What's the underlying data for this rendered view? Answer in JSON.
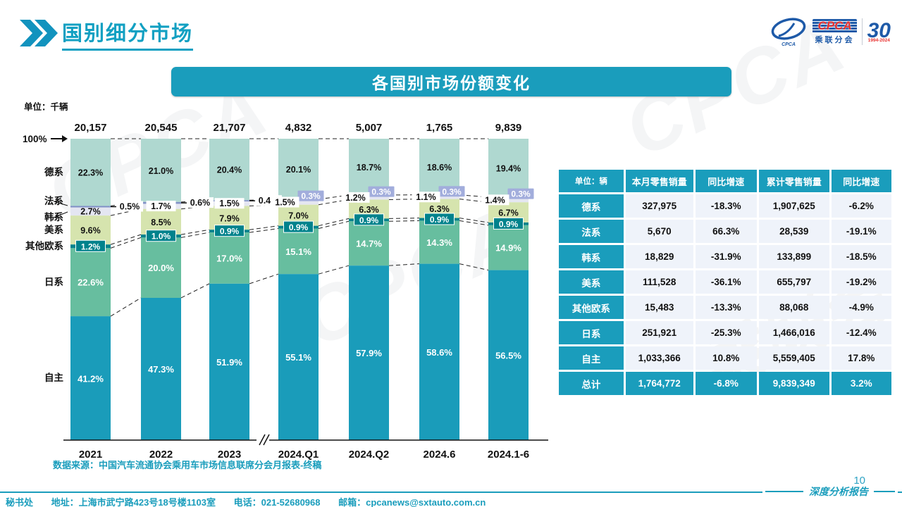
{
  "header": {
    "title": "国别细分市场"
  },
  "logo": {
    "cpca": "CPCA",
    "sub": "乘联分会",
    "anniv": "30",
    "years": "1994-2024"
  },
  "chart_data": {
    "type": "stacked-bar-100",
    "title": "各国别市场份额变化",
    "unit_label": "单位：千辆",
    "top_axis_label": "100%",
    "categories": [
      "2021",
      "2022",
      "2023",
      "2024.Q1",
      "2024.Q2",
      "2024.6",
      "2024.1-6"
    ],
    "totals": [
      "20,157",
      "20,545",
      "21,707",
      "4,832",
      "5,007",
      "1,765",
      "9,839"
    ],
    "axis_break_between": [
      "2023",
      "2024.Q1"
    ],
    "legend_position": "left",
    "grid": false,
    "series": [
      {
        "name": "德系",
        "color": "#AFD8D0",
        "values": [
          22.3,
          21.0,
          20.4,
          20.1,
          18.7,
          18.6,
          19.4
        ]
      },
      {
        "name": "法系",
        "color": "#8090C6",
        "values": [
          0.5,
          0.6,
          0.4,
          0.3,
          0.3,
          0.3,
          0.3
        ]
      },
      {
        "name": "韩系",
        "color": "#E4E6F1",
        "values": [
          2.7,
          1.7,
          1.5,
          1.5,
          1.2,
          1.1,
          1.4
        ]
      },
      {
        "name": "美系",
        "color": "#D6E4AE",
        "values": [
          9.6,
          8.5,
          7.9,
          7.0,
          6.3,
          6.3,
          6.7
        ]
      },
      {
        "name": "其他欧系",
        "color": "#00828C",
        "values": [
          1.2,
          1.0,
          0.9,
          0.9,
          0.9,
          0.9,
          0.9
        ]
      },
      {
        "name": "日系",
        "color": "#67BE9F",
        "values": [
          22.6,
          20.0,
          17.0,
          15.1,
          14.7,
          14.3,
          14.9
        ]
      },
      {
        "name": "自主",
        "color": "#1A9CBA",
        "values": [
          41.2,
          47.3,
          51.9,
          55.1,
          57.9,
          58.6,
          56.5
        ]
      }
    ],
    "source": "数据来源：中国汽车流通协会乘用车市场信息联席分会月报表-终稿"
  },
  "table": {
    "header": [
      "单位：辆",
      "本月零售销量",
      "同比增速",
      "累计零售销量",
      "同比增速"
    ],
    "rows": [
      [
        "德系",
        "327,975",
        "-18.3%",
        "1,907,625",
        "-6.2%"
      ],
      [
        "法系",
        "5,670",
        "66.3%",
        "28,539",
        "-19.1%"
      ],
      [
        "韩系",
        "18,829",
        "-31.9%",
        "133,899",
        "-18.5%"
      ],
      [
        "美系",
        "111,528",
        "-36.1%",
        "655,797",
        "-19.2%"
      ],
      [
        "其他欧系",
        "15,483",
        "-13.3%",
        "88,068",
        "-4.9%"
      ],
      [
        "日系",
        "251,921",
        "-25.3%",
        "1,466,016",
        "-12.4%"
      ],
      [
        "自主",
        "1,033,366",
        "10.8%",
        "5,559,405",
        "17.8%"
      ]
    ],
    "total_row": [
      "总计",
      "1,764,772",
      "-6.8%",
      "9,839,349",
      "3.2%"
    ]
  },
  "footer": {
    "org": "秘书处",
    "address": "地址：上海市武宁路423号18号楼1103室",
    "phone": "电话：021-52680968",
    "email": "邮箱：cpcanews@sxtauto.com.cn"
  },
  "misc": {
    "page_number": "10",
    "report_label": "深度分析报告"
  },
  "colors": {
    "accent": "#1A9DBC",
    "badge_france": "#A2ADDC",
    "badge_other_eu": "#00828C",
    "title": "#12A0C2"
  }
}
